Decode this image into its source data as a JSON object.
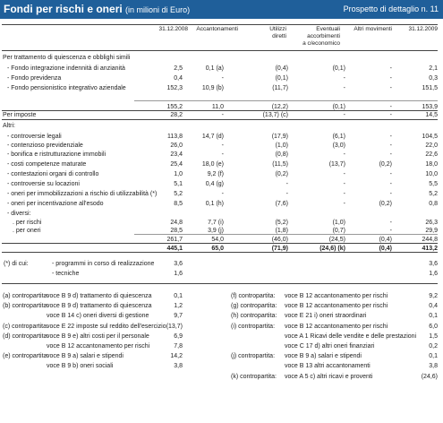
{
  "header": {
    "title": "Fondi per rischi e oneri",
    "unit": "(in milioni di Euro)",
    "subtitle": "Prospetto di dettaglio n. 11"
  },
  "columns": {
    "c1": "31.12.2008",
    "c2": "Accantonamenti",
    "c3a": "Utilizzi",
    "c3b": "diretti",
    "c4a": "Eventuali",
    "c4b": "accorbimenti",
    "c4c": "a c/economico",
    "c5": "Altri movimenti",
    "c6": "31.12.2009"
  },
  "rows": [
    {
      "label": "Per trattamento di quiescenza e obblighi simili",
      "v": [
        "",
        "",
        "",
        "",
        "",
        ""
      ],
      "bold": false
    },
    {
      "label": "- Fondo integrazione indennità di anzianità",
      "v": [
        "2,5",
        "0,1  (a)",
        "(0,4)",
        "(0,1)",
        "-",
        "2,1"
      ]
    },
    {
      "label": "- Fondo previdenza",
      "v": [
        "0,4",
        "-",
        "(0,1)",
        "-",
        "-",
        "0,3"
      ]
    },
    {
      "label": "- Fondo pensionistico integrativo aziendale",
      "v": [
        "152,3",
        "10,9  (b)",
        "(11,7)",
        "-",
        "-",
        "151,5"
      ]
    },
    {
      "label": "",
      "v": [
        "155,2",
        "11,0",
        "(12,2)",
        "(0,1)",
        "-",
        "153,9"
      ]
    },
    {
      "label": "Per imposte",
      "v": [
        "28,2",
        "-",
        "(13,7)  (c)",
        "-",
        "-",
        "14,5"
      ]
    },
    {
      "label": "Altri:",
      "v": [
        "",
        "",
        "",
        "",
        "",
        ""
      ]
    },
    {
      "label": "- controversie legali",
      "v": [
        "113,8",
        "14,7  (d)",
        "(17,9)",
        "(6,1)",
        "-",
        "104,5"
      ]
    },
    {
      "label": "- contenzioso previdenziale",
      "v": [
        "26,0",
        "-",
        "(1,0)",
        "(3,0)",
        "-",
        "22,0"
      ]
    },
    {
      "label": "- bonifica e ristrutturazione immobili",
      "v": [
        "23,4",
        "-",
        "(0,8)",
        "-",
        "-",
        "22,6"
      ]
    },
    {
      "label": "- costi competenze maturate",
      "v": [
        "25,4",
        "18,0  (e)",
        "(11,5)",
        "(13,7)",
        "(0,2)",
        "18,0"
      ]
    },
    {
      "label": "- contestazioni organi di controllo",
      "v": [
        "1,0",
        "9,2  (f)",
        "(0,2)",
        "-",
        "-",
        "10,0"
      ]
    },
    {
      "label": "- controversie su locazioni",
      "v": [
        "5,1",
        "0,4  (g)",
        "-",
        "-",
        "-",
        "5,5"
      ]
    },
    {
      "label": "- oneri per immobilizzazioni a rischio di utilizzabilità (*)",
      "v": [
        "5,2",
        "-",
        "-",
        "-",
        "-",
        "5,2"
      ]
    },
    {
      "label": "- oneri per incentivazione all'esodo",
      "v": [
        "8,5",
        "0,1  (h)",
        "(7,6)",
        "-",
        "(0,2)",
        "0,8"
      ]
    },
    {
      "label": "- diversi:",
      "v": [
        "",
        "",
        "",
        "",
        "",
        ""
      ]
    },
    {
      "label": ". per rischi",
      "v": [
        "24,8",
        "7,7  (i)",
        "(5,2)",
        "(1,0)",
        "-",
        "26,3"
      ]
    },
    {
      "label": ". per oneri",
      "v": [
        "28,5",
        "3,9  (j)",
        "(1,8)",
        "(0,7)",
        "-",
        "29,9"
      ]
    },
    {
      "label": "",
      "v": [
        "261,7",
        "54,0",
        "(46,0)",
        "(24,5)",
        "(0,4)",
        "244,8"
      ]
    },
    {
      "label": "",
      "v": [
        "445,1",
        "65,0",
        "(71,9)",
        "(24,6)  (k)",
        "(0,4)",
        "413,2"
      ]
    }
  ],
  "footnote": {
    "mark": "(*) di cui:",
    "a": "- programmi in corso di realizzazione",
    "a1": "3,6",
    "a2": "3,6",
    "b": "- tecniche",
    "b1": "1,6",
    "b2": "1,6"
  },
  "refs_left": [
    {
      "k": "(a) contropartita:",
      "d": "voce B 9 d) trattamento di quiescenza",
      "v": "0,1"
    },
    {
      "k": "(b) contropartita:",
      "d": "voce B 9 d) trattamento di quiescenza",
      "v": "1,2"
    },
    {
      "k": "",
      "d": "voce B 14 c) oneri diversi di gestione",
      "v": "9,7"
    },
    {
      "k": "(c) contropartita:",
      "d": "voce E 22 imposte sul reddito dell'esercizio",
      "v": "(13,7)"
    },
    {
      "k": "(d) contropartita:",
      "d": "voce B 9 e) altri costi per il personale",
      "v": "6,9"
    },
    {
      "k": "",
      "d": "voce B 12 accantonamento per rischi",
      "v": "7,8"
    },
    {
      "k": "(e) contropartita:",
      "d": "voce B 9 a) salari e stipendi",
      "v": "14,2"
    },
    {
      "k": "",
      "d": "voce B 9 b) oneri sociali",
      "v": "3,8"
    }
  ],
  "refs_right": [
    {
      "k": "(f) contropartita:",
      "d": "voce B 12 accantonamento per rischi",
      "v": "9,2"
    },
    {
      "k": "(g) contropartita:",
      "d": "voce B 12 accantonamento per rischi",
      "v": "0,4"
    },
    {
      "k": "(h) contropartita:",
      "d": "voce E 21 i) oneri straordinari",
      "v": "0,1"
    },
    {
      "k": "(i) contropartita:",
      "d": "voce B 12 accantonamento per rischi",
      "v": "6,0"
    },
    {
      "k": "",
      "d": "voce A 1 Ricavi delle vendite e delle prestazioni",
      "v": "1,5"
    },
    {
      "k": "",
      "d": "voce C 17 d) altri oneri finanziari",
      "v": "0,2"
    },
    {
      "k": "(j) contropartita:",
      "d": "voce B 9 a) salari e stipendi",
      "v": "0,1"
    },
    {
      "k": "",
      "d": "voce B 13 altri accantonamenti",
      "v": "3,8"
    },
    {
      "k": "(k) contropartita:",
      "d": "voce A 5 c) altri ricavi e proventi",
      "v": "(24,6)"
    }
  ]
}
